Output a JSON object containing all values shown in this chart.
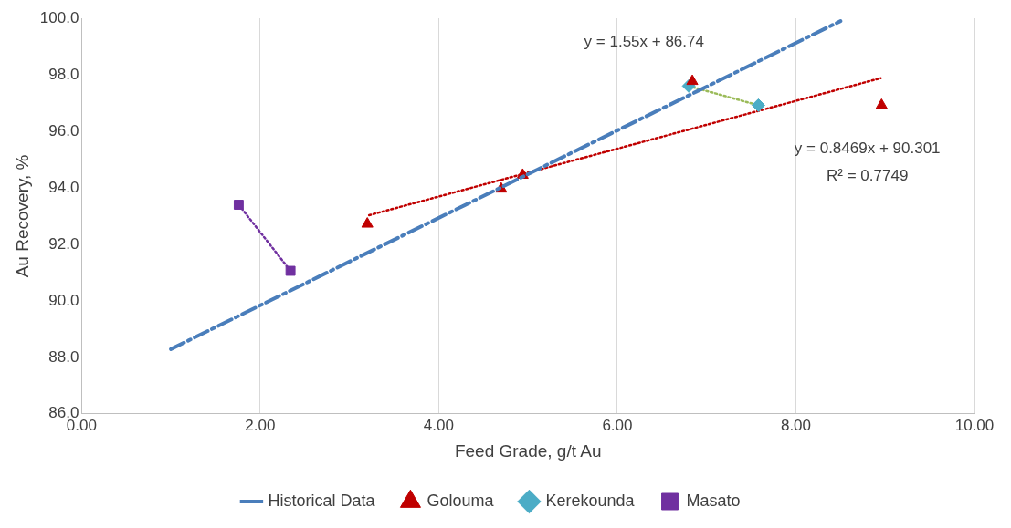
{
  "chart_data": {
    "type": "scatter",
    "xlabel": "Feed Grade, g/t Au",
    "ylabel": "Au Recovery, %",
    "xlim": [
      0,
      10
    ],
    "ylim": [
      86,
      100
    ],
    "xticks": [
      {
        "value": 0,
        "label": "0.00"
      },
      {
        "value": 2,
        "label": "2.00"
      },
      {
        "value": 4,
        "label": "4.00"
      },
      {
        "value": 6,
        "label": "6.00"
      },
      {
        "value": 8,
        "label": "8.00"
      },
      {
        "value": 10,
        "label": "10.00"
      }
    ],
    "yticks": [
      {
        "value": 86,
        "label": "86.0"
      },
      {
        "value": 88,
        "label": "88.0"
      },
      {
        "value": 90,
        "label": "90.0"
      },
      {
        "value": 92,
        "label": "92.0"
      },
      {
        "value": 94,
        "label": "94.0"
      },
      {
        "value": 96,
        "label": "96.0"
      },
      {
        "value": 98,
        "label": "98.0"
      },
      {
        "value": 100,
        "label": "100.0"
      }
    ],
    "grid": "x",
    "legend": "bottom",
    "series": [
      {
        "name": "Historical Data",
        "type": "line",
        "color": "#4a7ebb",
        "line_style": "dashed",
        "marker": "none",
        "x": [
          1,
          8.5
        ],
        "values": [
          88.29,
          99.9
        ]
      },
      {
        "name": "Golouma",
        "color": "#c00000",
        "marker": "triangle",
        "x": [
          3.2,
          4.7,
          4.94,
          6.84,
          8.96
        ],
        "values": [
          92.72,
          93.96,
          94.45,
          97.77,
          96.92
        ]
      },
      {
        "name": "Kerekounda",
        "color": "#4bacc6",
        "marker": "diamond",
        "x": [
          6.8,
          7.58
        ],
        "values": [
          97.6,
          96.92
        ]
      },
      {
        "name": "Masato",
        "color": "#7030a0",
        "marker": "square",
        "x": [
          1.76,
          2.34
        ],
        "values": [
          93.4,
          91.06
        ]
      },
      {
        "type": "line",
        "color": "#c00000",
        "line_style": "dotted",
        "marker": "none",
        "x": [
          3.22,
          8.95
        ],
        "values": [
          93.03,
          97.88
        ]
      },
      {
        "type": "line",
        "color": "#9bbb59",
        "line_style": "dotted",
        "marker": "none",
        "x": [
          6.8,
          7.58
        ],
        "values": [
          97.6,
          96.92
        ]
      },
      {
        "type": "line",
        "color": "#7030a0",
        "line_style": "dotted",
        "marker": "none",
        "x": [
          1.76,
          2.34
        ],
        "values": [
          93.4,
          91.06
        ]
      }
    ],
    "annotations": [
      "y = 1.55x + 86.74",
      "y = 0.8469x + 90.301",
      "R² = 0.7749"
    ]
  }
}
